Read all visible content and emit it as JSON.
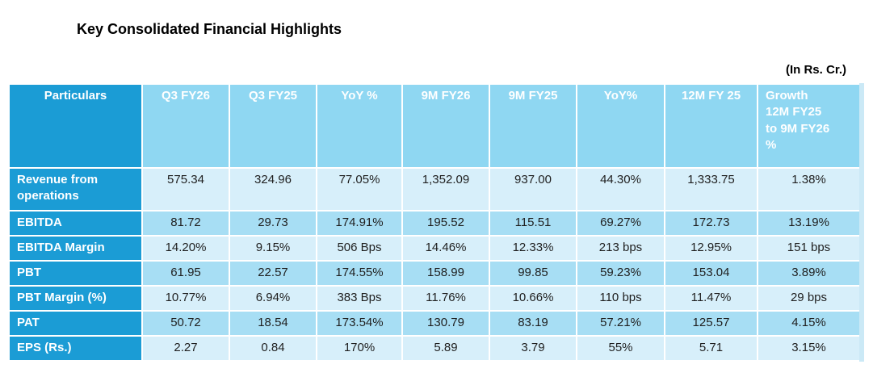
{
  "title": "Key Consolidated Financial Highlights",
  "unit_note": "(In Rs. Cr.)",
  "colors": {
    "header_dark": "#1B9CD5",
    "header_light": "#8FD7F2",
    "row_light": "#D7EFFA",
    "row_medium": "#A7DEF4"
  },
  "table": {
    "header": [
      "Particulars",
      "Q3 FY26",
      "Q3 FY25",
      "YoY %",
      "9M FY26",
      "9M FY25",
      "YoY%",
      "12M FY 25",
      "Growth\n12M FY25\nto 9M FY26\n%"
    ],
    "rows": [
      {
        "label": "Revenue from operations",
        "values": [
          "575.34",
          "324.96",
          "77.05%",
          "1,352.09",
          "937.00",
          "44.30%",
          "1,333.75",
          "1.38%"
        ]
      },
      {
        "label": "EBITDA",
        "values": [
          "81.72",
          "29.73",
          "174.91%",
          "195.52",
          "115.51",
          "69.27%",
          "172.73",
          "13.19%"
        ]
      },
      {
        "label": "EBITDA Margin",
        "values": [
          "14.20%",
          "9.15%",
          "506 Bps",
          "14.46%",
          "12.33%",
          "213 bps",
          "12.95%",
          "151 bps"
        ]
      },
      {
        "label": "PBT",
        "values": [
          "61.95",
          "22.57",
          "174.55%",
          "158.99",
          "99.85",
          "59.23%",
          "153.04",
          "3.89%"
        ]
      },
      {
        "label": "PBT Margin (%)",
        "values": [
          "10.77%",
          "6.94%",
          "383 Bps",
          "11.76%",
          "10.66%",
          "110 bps",
          "11.47%",
          "29 bps"
        ]
      },
      {
        "label": "PAT",
        "values": [
          "50.72",
          "18.54",
          "173.54%",
          "130.79",
          "83.19",
          "57.21%",
          "125.57",
          "4.15%"
        ]
      },
      {
        "label": "EPS (Rs.)",
        "values": [
          "2.27",
          "0.84",
          "170%",
          "5.89",
          "3.79",
          "55%",
          "5.71",
          "3.15%"
        ]
      }
    ]
  }
}
